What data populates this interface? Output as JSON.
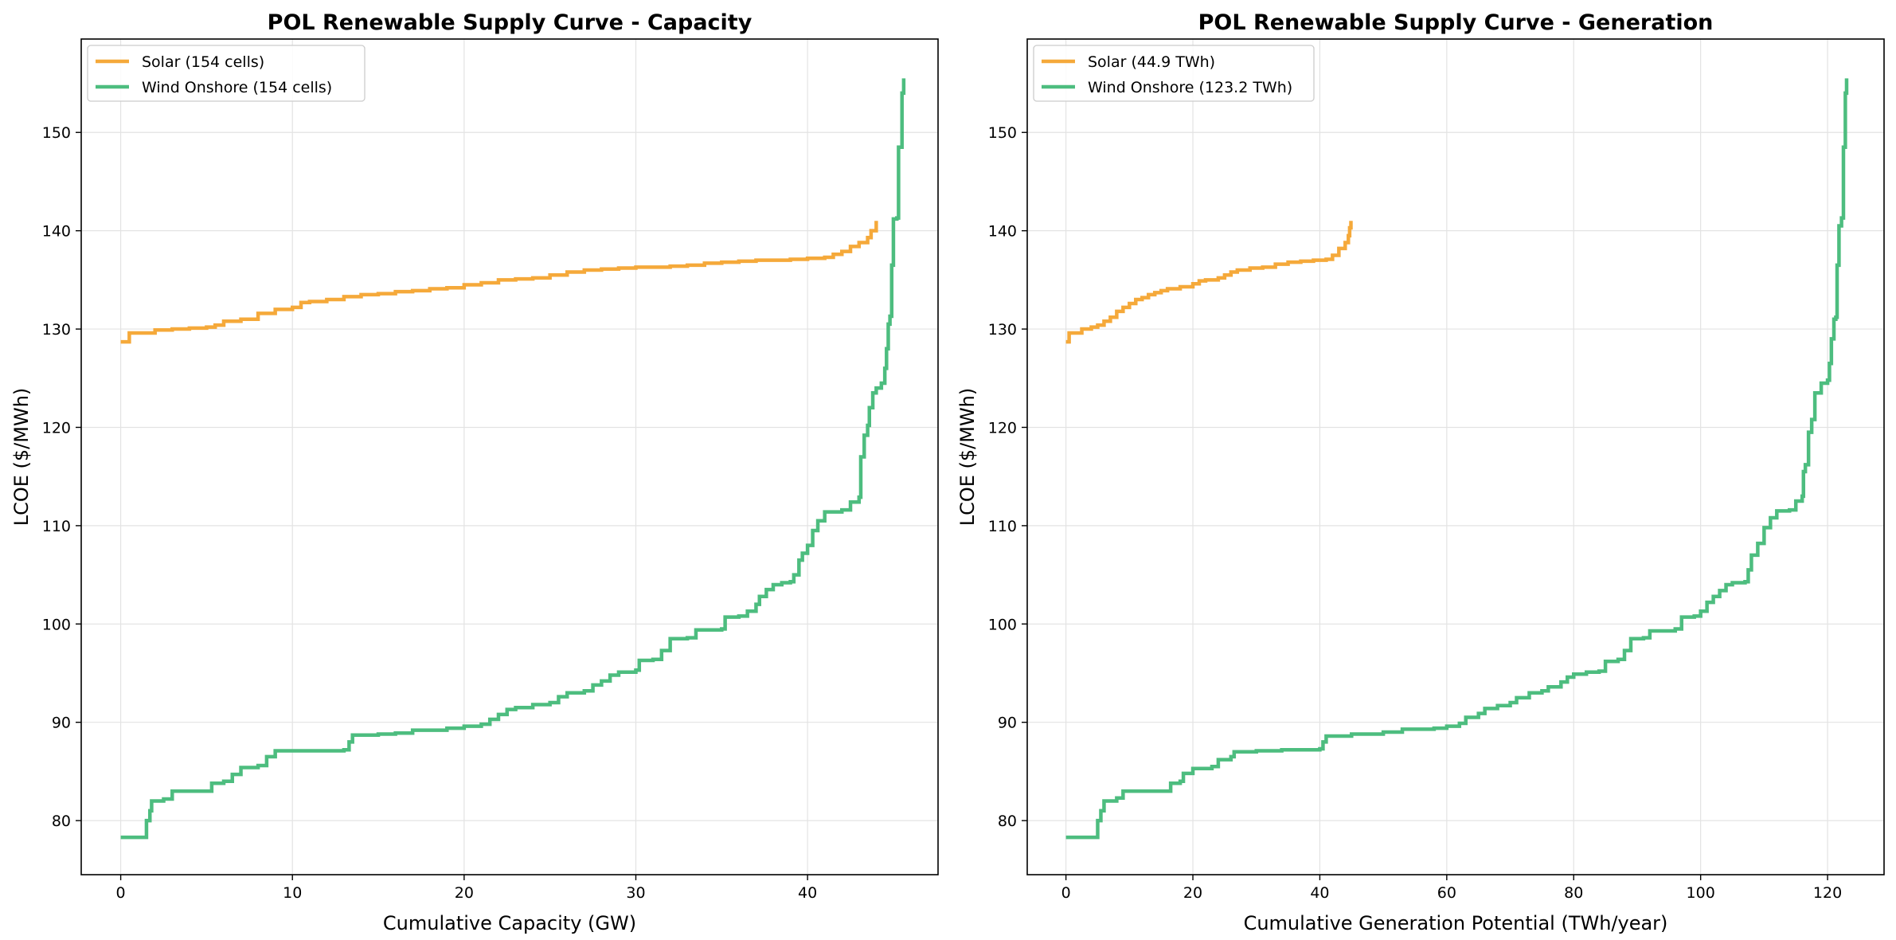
{
  "chart_data": [
    {
      "type": "line",
      "title": "POL Renewable Supply Curve - Capacity",
      "xlabel": "Cumulative Capacity (GW)",
      "ylabel": "LCOE ($/MWh)",
      "xlim": [
        -2.3,
        47.6
      ],
      "ylim": [
        74.5,
        159.5
      ],
      "xticks": [
        0,
        10,
        20,
        30,
        40
      ],
      "yticks": [
        80,
        90,
        100,
        110,
        120,
        130,
        140,
        150
      ],
      "grid": true,
      "legend": "top-left",
      "step": true,
      "series": [
        {
          "name": "Solar (154 cells)",
          "color": "#f5a93a",
          "points": [
            [
              0,
              128.7
            ],
            [
              0.5,
              128.7
            ],
            [
              0.5,
              129.6
            ],
            [
              1.2,
              129.6
            ],
            [
              2,
              129.9
            ],
            [
              3,
              130.0
            ],
            [
              4,
              130.1
            ],
            [
              5,
              130.2
            ],
            [
              5.5,
              130.4
            ],
            [
              6,
              130.8
            ],
            [
              7,
              131.0
            ],
            [
              8,
              131.6
            ],
            [
              9,
              132.0
            ],
            [
              10,
              132.2
            ],
            [
              10.5,
              132.7
            ],
            [
              11,
              132.8
            ],
            [
              12,
              133.0
            ],
            [
              13,
              133.3
            ],
            [
              14,
              133.5
            ],
            [
              15,
              133.6
            ],
            [
              16,
              133.8
            ],
            [
              17,
              133.9
            ],
            [
              18,
              134.1
            ],
            [
              19,
              134.2
            ],
            [
              20,
              134.5
            ],
            [
              21,
              134.7
            ],
            [
              22,
              135.0
            ],
            [
              23,
              135.1
            ],
            [
              24,
              135.2
            ],
            [
              25,
              135.5
            ],
            [
              26,
              135.8
            ],
            [
              27,
              136.0
            ],
            [
              28,
              136.1
            ],
            [
              29,
              136.2
            ],
            [
              30,
              136.3
            ],
            [
              32,
              136.4
            ],
            [
              33,
              136.5
            ],
            [
              34,
              136.7
            ],
            [
              35,
              136.8
            ],
            [
              36,
              136.9
            ],
            [
              37,
              137.0
            ],
            [
              38,
              137.0
            ],
            [
              39,
              137.1
            ],
            [
              40,
              137.2
            ],
            [
              41,
              137.3
            ],
            [
              41.5,
              137.6
            ],
            [
              42,
              137.9
            ],
            [
              42.5,
              138.4
            ],
            [
              43,
              138.8
            ],
            [
              43.5,
              139.3
            ],
            [
              43.7,
              140.0
            ],
            [
              44,
              141.0
            ]
          ]
        },
        {
          "name": "Wind Onshore (154 cells)",
          "color": "#4dbd7f",
          "points": [
            [
              0,
              78.3
            ],
            [
              1.5,
              78.3
            ],
            [
              1.5,
              80.0
            ],
            [
              1.7,
              81.0
            ],
            [
              1.8,
              82.0
            ],
            [
              2.5,
              82.2
            ],
            [
              3,
              83.0
            ],
            [
              5,
              83.0
            ],
            [
              5.3,
              83.8
            ],
            [
              6,
              84.0
            ],
            [
              6.5,
              84.7
            ],
            [
              7,
              85.4
            ],
            [
              8,
              85.6
            ],
            [
              8.5,
              86.5
            ],
            [
              9,
              87.1
            ],
            [
              13,
              87.2
            ],
            [
              13.3,
              88.0
            ],
            [
              13.5,
              88.7
            ],
            [
              15,
              88.8
            ],
            [
              16,
              88.9
            ],
            [
              17,
              89.2
            ],
            [
              19,
              89.4
            ],
            [
              20,
              89.6
            ],
            [
              21,
              89.8
            ],
            [
              21.5,
              90.3
            ],
            [
              22,
              90.8
            ],
            [
              22.5,
              91.3
            ],
            [
              23,
              91.5
            ],
            [
              24,
              91.8
            ],
            [
              25,
              92.0
            ],
            [
              25.5,
              92.6
            ],
            [
              26,
              93.0
            ],
            [
              27,
              93.2
            ],
            [
              27.5,
              93.8
            ],
            [
              28,
              94.2
            ],
            [
              28.5,
              94.8
            ],
            [
              29,
              95.1
            ],
            [
              30,
              95.3
            ],
            [
              30.2,
              96.3
            ],
            [
              31,
              96.4
            ],
            [
              31.5,
              97.3
            ],
            [
              32,
              98.5
            ],
            [
              33,
              98.6
            ],
            [
              33.5,
              99.4
            ],
            [
              35,
              99.5
            ],
            [
              35.2,
              100.7
            ],
            [
              36,
              100.8
            ],
            [
              36.5,
              101.3
            ],
            [
              37,
              102.0
            ],
            [
              37.2,
              102.8
            ],
            [
              37.6,
              103.5
            ],
            [
              38,
              104.0
            ],
            [
              38.5,
              104.2
            ],
            [
              39,
              104.3
            ],
            [
              39.2,
              105.0
            ],
            [
              39.5,
              106.5
            ],
            [
              39.7,
              107.2
            ],
            [
              40,
              108.0
            ],
            [
              40.3,
              109.5
            ],
            [
              40.6,
              110.5
            ],
            [
              41,
              111.4
            ],
            [
              42,
              111.6
            ],
            [
              42.5,
              112.4
            ],
            [
              43,
              112.9
            ],
            [
              43.1,
              117.0
            ],
            [
              43.3,
              119.2
            ],
            [
              43.5,
              120.2
            ],
            [
              43.6,
              122.0
            ],
            [
              43.8,
              123.5
            ],
            [
              44,
              124.0
            ],
            [
              44.3,
              124.5
            ],
            [
              44.5,
              126.0
            ],
            [
              44.6,
              128.0
            ],
            [
              44.7,
              130.5
            ],
            [
              44.8,
              131.3
            ],
            [
              44.9,
              136.5
            ],
            [
              45,
              141.2
            ],
            [
              45.2,
              141.3
            ],
            [
              45.3,
              148.5
            ],
            [
              45.5,
              154.0
            ],
            [
              45.6,
              155.5
            ]
          ]
        }
      ]
    },
    {
      "type": "line",
      "title": "POL Renewable Supply Curve - Generation",
      "xlabel": "Cumulative Generation Potential (TWh/year)",
      "ylabel": "LCOE ($/MWh)",
      "xlim": [
        -6.1,
        128.9
      ],
      "ylim": [
        74.5,
        159.5
      ],
      "xticks": [
        0,
        20,
        40,
        60,
        80,
        100,
        120
      ],
      "yticks": [
        80,
        90,
        100,
        110,
        120,
        130,
        140,
        150
      ],
      "grid": true,
      "legend": "top-left",
      "step": true,
      "series": [
        {
          "name": "Solar (44.9 TWh)",
          "color": "#f5a93a",
          "points": [
            [
              0,
              128.7
            ],
            [
              0.5,
              128.7
            ],
            [
              0.5,
              129.6
            ],
            [
              1.5,
              129.6
            ],
            [
              2.5,
              130.0
            ],
            [
              4,
              130.2
            ],
            [
              5,
              130.4
            ],
            [
              6,
              130.8
            ],
            [
              7,
              131.2
            ],
            [
              8,
              131.8
            ],
            [
              9,
              132.2
            ],
            [
              10,
              132.6
            ],
            [
              11,
              133.0
            ],
            [
              12,
              133.2
            ],
            [
              13,
              133.5
            ],
            [
              14,
              133.7
            ],
            [
              15,
              133.9
            ],
            [
              16,
              134.1
            ],
            [
              18,
              134.3
            ],
            [
              20,
              134.6
            ],
            [
              21,
              134.9
            ],
            [
              22,
              135.0
            ],
            [
              24,
              135.2
            ],
            [
              25,
              135.5
            ],
            [
              26,
              135.8
            ],
            [
              27,
              136.0
            ],
            [
              29,
              136.2
            ],
            [
              31,
              136.3
            ],
            [
              33,
              136.6
            ],
            [
              35,
              136.8
            ],
            [
              37,
              136.9
            ],
            [
              39,
              137.0
            ],
            [
              41,
              137.1
            ],
            [
              42,
              137.5
            ],
            [
              43,
              138.2
            ],
            [
              44,
              138.8
            ],
            [
              44.5,
              139.5
            ],
            [
              44.7,
              140.3
            ],
            [
              44.9,
              141.0
            ]
          ]
        },
        {
          "name": "Wind Onshore (123.2 TWh)",
          "color": "#4dbd7f",
          "points": [
            [
              0,
              78.3
            ],
            [
              5,
              78.3
            ],
            [
              5,
              80.0
            ],
            [
              5.5,
              81.0
            ],
            [
              6,
              82.0
            ],
            [
              8,
              82.3
            ],
            [
              9,
              83.0
            ],
            [
              16,
              83.0
            ],
            [
              16.5,
              83.8
            ],
            [
              18,
              84.0
            ],
            [
              18.5,
              84.8
            ],
            [
              20,
              85.3
            ],
            [
              23,
              85.5
            ],
            [
              24,
              86.2
            ],
            [
              26,
              86.5
            ],
            [
              26.5,
              87.0
            ],
            [
              30,
              87.1
            ],
            [
              34,
              87.2
            ],
            [
              40,
              87.3
            ],
            [
              40.5,
              88.0
            ],
            [
              41,
              88.6
            ],
            [
              45,
              88.8
            ],
            [
              50,
              89.0
            ],
            [
              53,
              89.3
            ],
            [
              58,
              89.4
            ],
            [
              60,
              89.6
            ],
            [
              62,
              89.9
            ],
            [
              63,
              90.5
            ],
            [
              65,
              90.9
            ],
            [
              66,
              91.4
            ],
            [
              68,
              91.7
            ],
            [
              70,
              92.0
            ],
            [
              71,
              92.5
            ],
            [
              73,
              93.0
            ],
            [
              75,
              93.2
            ],
            [
              76,
              93.6
            ],
            [
              78,
              94.1
            ],
            [
              79,
              94.6
            ],
            [
              80,
              94.9
            ],
            [
              82,
              95.1
            ],
            [
              84,
              95.2
            ],
            [
              85,
              96.2
            ],
            [
              87,
              96.4
            ],
            [
              88,
              97.3
            ],
            [
              89,
              98.5
            ],
            [
              91,
              98.6
            ],
            [
              92,
              99.3
            ],
            [
              96,
              99.5
            ],
            [
              97,
              100.7
            ],
            [
              99,
              100.8
            ],
            [
              100,
              101.3
            ],
            [
              101,
              102.2
            ],
            [
              102,
              102.8
            ],
            [
              103,
              103.4
            ],
            [
              104,
              104.0
            ],
            [
              105,
              104.2
            ],
            [
              107,
              104.3
            ],
            [
              107.5,
              105.5
            ],
            [
              108,
              107.0
            ],
            [
              109,
              108.2
            ],
            [
              110,
              109.8
            ],
            [
              111,
              110.8
            ],
            [
              112,
              111.5
            ],
            [
              114,
              111.6
            ],
            [
              115,
              112.5
            ],
            [
              116,
              113.0
            ],
            [
              116.2,
              115.5
            ],
            [
              116.5,
              116.2
            ],
            [
              117,
              119.5
            ],
            [
              117.5,
              120.8
            ],
            [
              118,
              123.5
            ],
            [
              119,
              124.5
            ],
            [
              120,
              124.8
            ],
            [
              120.3,
              126.5
            ],
            [
              120.6,
              129.0
            ],
            [
              121,
              131.0
            ],
            [
              121.3,
              131.2
            ],
            [
              121.5,
              136.5
            ],
            [
              121.8,
              140.5
            ],
            [
              122.2,
              141.3
            ],
            [
              122.5,
              148.5
            ],
            [
              122.8,
              154.0
            ],
            [
              123,
              155.5
            ]
          ]
        }
      ]
    }
  ]
}
